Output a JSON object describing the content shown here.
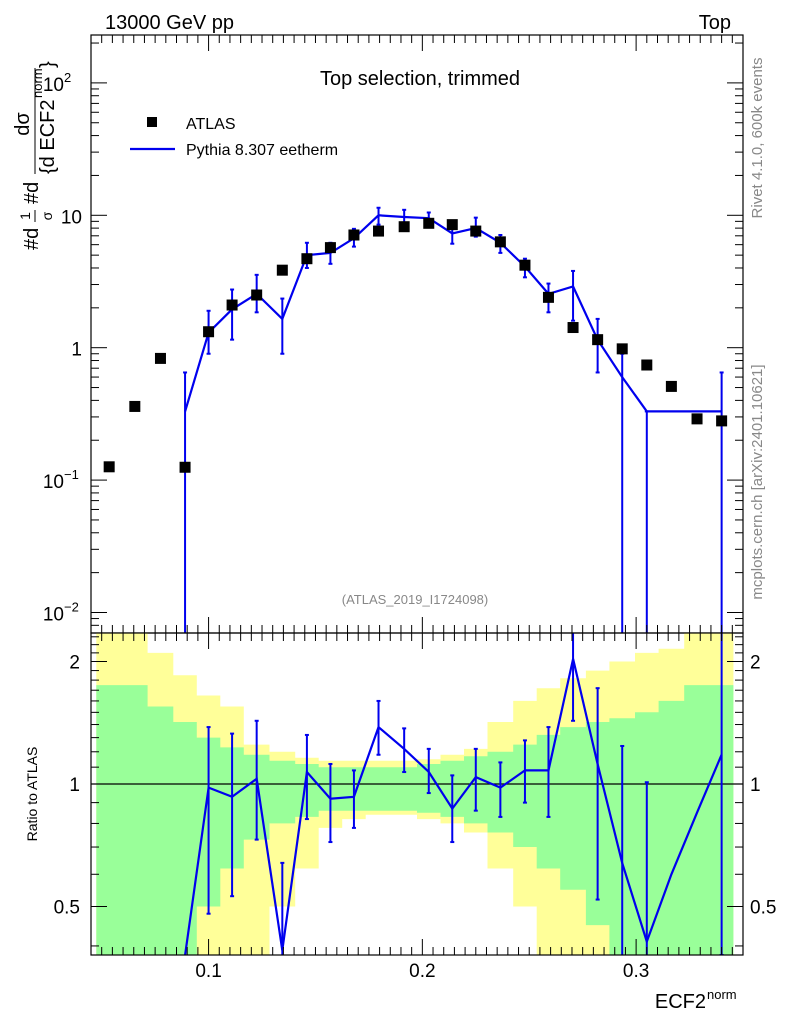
{
  "header": {
    "left": "13000 GeV pp",
    "right": "Top"
  },
  "top_panel": {
    "title": "Top selection, trimmed",
    "analysis_id": "(ATLAS_2019_I1724098)",
    "y_axis": {
      "prefix": "#d",
      "frac_top": "1",
      "frac_bot": "σ",
      "mid": "#d",
      "num": "dσ",
      "den_a": "{d ECF2",
      "den_b": "}",
      "sup": "norm"
    },
    "y_ticks": [
      {
        "base": "10",
        "exp": "−2"
      },
      {
        "base": "10",
        "exp": "−1"
      },
      {
        "base": "1",
        "exp": ""
      },
      {
        "base": "10",
        "exp": ""
      },
      {
        "base": "10",
        "exp": "2"
      }
    ]
  },
  "ratio_panel": {
    "ylabel": "Ratio to ATLAS",
    "y_ticks": [
      "0.5",
      "1",
      "2"
    ]
  },
  "x_axis": {
    "label": "ECF2",
    "label_sup": "norm",
    "ticks": [
      "0.1",
      "0.2",
      "0.3"
    ]
  },
  "side_text": {
    "top": "Rivet 4.1.0,  600k events",
    "bottom": "mcplots.cern.ch [arXiv:2401.10621]"
  },
  "legend": [
    {
      "name": "ATLAS",
      "marker": "square"
    },
    {
      "name": "Pythia 8.307 eetherm",
      "marker": "line"
    }
  ],
  "colors": {
    "mc": "#0000ee",
    "data": "#000000",
    "band_outer": "#ffff99",
    "band_inner": "#99ff99"
  },
  "chart_data": {
    "type": "line",
    "xlim": [
      0.045,
      0.35
    ],
    "ylim": [
      0.007,
      230
    ],
    "ratio_ylim": [
      0.38,
      2.35
    ],
    "bin_edges": [
      0.0475,
      0.0595,
      0.0715,
      0.0835,
      0.0945,
      0.1055,
      0.1165,
      0.1285,
      0.1405,
      0.1515,
      0.1625,
      0.1735,
      0.1855,
      0.1975,
      0.2085,
      0.2195,
      0.2305,
      0.2425,
      0.2535,
      0.2645,
      0.2765,
      0.2875,
      0.2995,
      0.3105,
      0.3225,
      0.3345,
      0.3455
    ],
    "data": {
      "name": "ATLAS",
      "x": [
        0.0535,
        0.0655,
        0.0775,
        0.089,
        0.1,
        0.111,
        0.1225,
        0.1345,
        0.146,
        0.157,
        0.168,
        0.1795,
        0.1915,
        0.203,
        0.214,
        0.225,
        0.2365,
        0.248,
        0.259,
        0.2705,
        0.282,
        0.2935,
        0.305,
        0.3165,
        0.3285,
        0.34
      ],
      "y": [
        0.126,
        0.36,
        0.83,
        0.125,
        1.32,
        2.1,
        2.5,
        3.85,
        4.7,
        5.7,
        7.1,
        7.6,
        8.2,
        8.7,
        8.5,
        7.6,
        6.3,
        4.2,
        2.4,
        1.42,
        1.15,
        0.98,
        0.74,
        0.51,
        0.29,
        0.28
      ]
    },
    "mc": {
      "name": "Pythia 8.307 eetherm",
      "x": [
        0.089,
        0.1,
        0.111,
        0.1225,
        0.1345,
        0.146,
        0.157,
        0.168,
        0.1795,
        0.1915,
        0.203,
        0.214,
        0.225,
        0.2365,
        0.248,
        0.259,
        0.2705,
        0.282,
        0.2935,
        0.305,
        0.3165,
        0.3285,
        0.34
      ],
      "y": [
        0.33,
        1.3,
        1.95,
        2.55,
        1.65,
        5.0,
        5.2,
        6.7,
        10.0,
        9.7,
        9.5,
        7.3,
        8.0,
        6.2,
        4.1,
        2.55,
        2.9,
        1.15,
        0.6,
        0.33,
        0.33,
        0.33,
        0.33
      ],
      "err_lo": [
        0.33,
        0.4,
        0.8,
        0.7,
        0.75,
        1.0,
        0.9,
        0.9,
        1.5,
        1.3,
        1.2,
        1.2,
        1.1,
        1.0,
        0.7,
        0.7,
        1.3,
        0.5,
        0.6,
        0.33,
        0,
        0,
        0.33
      ],
      "err_hi": [
        0.32,
        0.6,
        0.8,
        1.0,
        0.7,
        1.2,
        1.0,
        1.2,
        1.4,
        1.3,
        1.0,
        1.5,
        1.6,
        0.9,
        0.6,
        0.5,
        0.9,
        0.5,
        0.3,
        0,
        0,
        0,
        0.32
      ],
      "err_lo_open": [
        true,
        false,
        false,
        false,
        false,
        false,
        false,
        false,
        false,
        false,
        false,
        false,
        false,
        false,
        false,
        false,
        false,
        false,
        false,
        true,
        false,
        false,
        true
      ]
    },
    "ratio": {
      "x": [
        0.089,
        0.1,
        0.111,
        0.1225,
        0.1345,
        0.146,
        0.157,
        0.168,
        0.1795,
        0.1915,
        0.203,
        0.214,
        0.225,
        0.2365,
        0.248,
        0.259,
        0.2705,
        0.282,
        0.2935,
        0.305,
        0.3165,
        0.3285,
        0.34
      ],
      "y": [
        0.38,
        0.98,
        0.93,
        1.03,
        0.39,
        1.07,
        0.92,
        0.93,
        1.38,
        1.22,
        1.07,
        0.87,
        1.04,
        0.98,
        1.08,
        1.08,
        2.03,
        1.12,
        0.64,
        0.41,
        0.6,
        0.85,
        1.18
      ],
      "err_lo": [
        0,
        0.5,
        0.4,
        0.3,
        0.2,
        0.25,
        0.2,
        0.15,
        0.2,
        0.15,
        0.12,
        0.15,
        0.18,
        0.15,
        0.18,
        0.25,
        0.6,
        0.6,
        0.5,
        0.5,
        0,
        0,
        0.8
      ],
      "err_hi": [
        0,
        0.4,
        0.4,
        0.4,
        0.25,
        0.25,
        0.2,
        0.15,
        0.22,
        0.15,
        0.15,
        0.18,
        0.18,
        0.15,
        0.2,
        0.3,
        0.5,
        0.6,
        0.6,
        0.6,
        0,
        0,
        1.2
      ]
    },
    "band_inner_lo": [
      0.38,
      0.38,
      0.38,
      0.38,
      0.5,
      0.62,
      0.73,
      0.8,
      0.83,
      0.86,
      0.86,
      0.86,
      0.86,
      0.85,
      0.83,
      0.8,
      0.76,
      0.7,
      0.62,
      0.55,
      0.45,
      0.38,
      0.38,
      0.38,
      0.38,
      0.38
    ],
    "band_inner_hi": [
      1.75,
      1.75,
      1.55,
      1.42,
      1.3,
      1.23,
      1.18,
      1.14,
      1.12,
      1.1,
      1.1,
      1.1,
      1.1,
      1.12,
      1.14,
      1.17,
      1.2,
      1.25,
      1.32,
      1.38,
      1.42,
      1.45,
      1.5,
      1.6,
      1.75,
      1.75
    ],
    "band_outer_lo": [
      0.38,
      0.38,
      0.38,
      0.38,
      0.38,
      0.38,
      0.38,
      0.5,
      0.62,
      0.78,
      0.82,
      0.84,
      0.84,
      0.82,
      0.8,
      0.76,
      0.62,
      0.5,
      0.38,
      0.38,
      0.38,
      0.38,
      0.38,
      0.38,
      0.38,
      0.38
    ],
    "band_outer_hi": [
      2.35,
      2.35,
      2.1,
      1.85,
      1.65,
      1.55,
      1.25,
      1.2,
      1.16,
      1.14,
      1.14,
      1.14,
      1.14,
      1.15,
      1.18,
      1.22,
      1.42,
      1.6,
      1.72,
      1.82,
      1.9,
      2.0,
      2.1,
      2.15,
      2.35,
      2.35
    ]
  }
}
